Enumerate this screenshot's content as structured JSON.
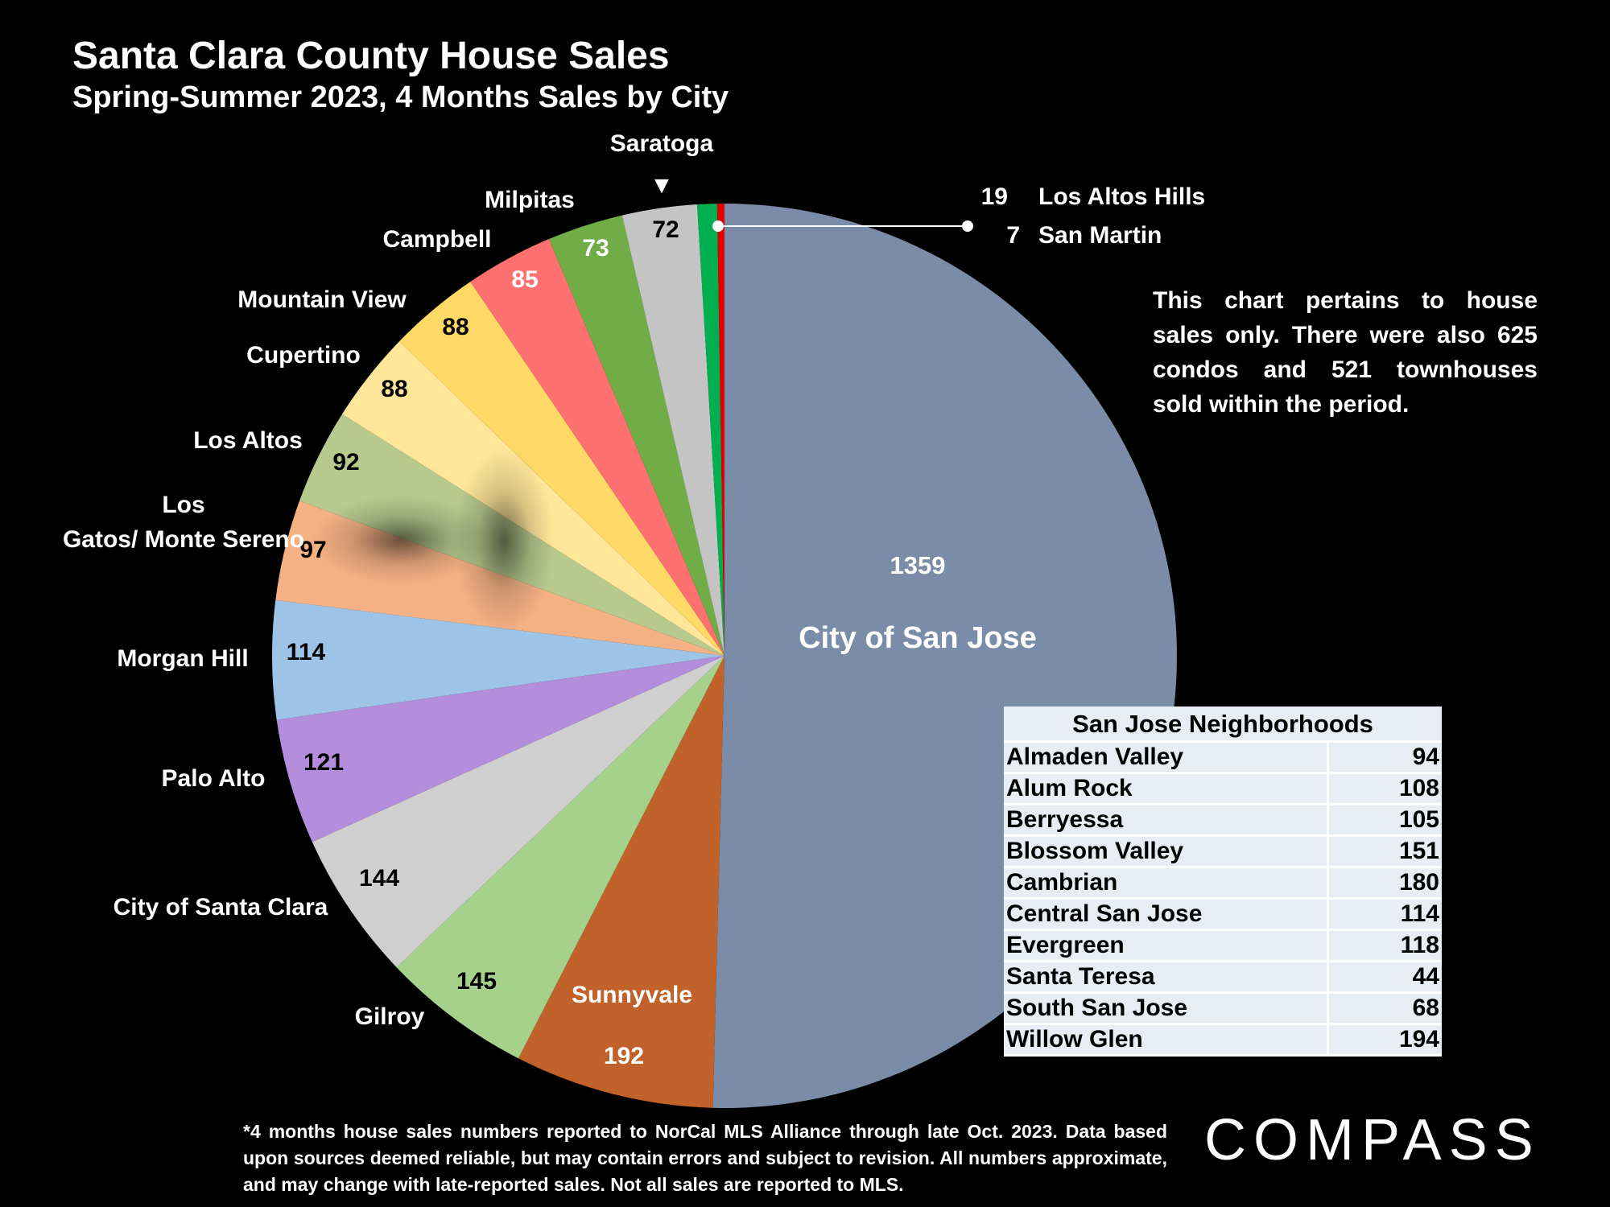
{
  "header": {
    "title": "Santa Clara County House Sales",
    "subtitle": "Spring-Summer 2023, 4 Months Sales by City"
  },
  "chart_data": {
    "type": "pie",
    "title": "Santa Clara County House Sales",
    "subtitle": "Spring-Summer 2023, 4 Months Sales by City",
    "slices": [
      {
        "label": "City of San Jose",
        "value": 1359,
        "color": "#7a8ca8"
      },
      {
        "label": "Sunnyvale",
        "value": 192,
        "color": "#c0622a"
      },
      {
        "label": "Gilroy",
        "value": 145,
        "color": "#a6d18b"
      },
      {
        "label": "City of Santa Clara",
        "value": 144,
        "color": "#cfcfcf"
      },
      {
        "label": "Palo Alto",
        "value": 121,
        "color": "#b48ddc"
      },
      {
        "label": "Morgan Hill",
        "value": 114,
        "color": "#9dc3e6"
      },
      {
        "label": "Los Gatos/ Monte Sereno",
        "value": 97,
        "color": "#f4b183"
      },
      {
        "label": "Los Altos",
        "value": 92,
        "color": "#b7c98d"
      },
      {
        "label": "Cupertino",
        "value": 88,
        "color": "#ffe699"
      },
      {
        "label": "Mountain View",
        "value": 88,
        "color": "#ffd966"
      },
      {
        "label": "Campbell",
        "value": 85,
        "color": "#ff7070"
      },
      {
        "label": "Milpitas",
        "value": 73,
        "color": "#70ad47"
      },
      {
        "label": "Saratoga",
        "value": 72,
        "color": "#c4c4c4"
      },
      {
        "label": "Los Altos Hills",
        "value": 19,
        "color": "#00b050"
      },
      {
        "label": "San Martin",
        "value": 7,
        "color": "#e00000"
      }
    ],
    "saratoga_marker": "▼"
  },
  "note": "This chart pertains to house sales only. There were also 625 condos and 521 townhouses sold within the period.",
  "neighborhoods": {
    "title": "San Jose Neighborhoods",
    "rows": [
      {
        "name": "Almaden Valley",
        "value": "94"
      },
      {
        "name": "Alum Rock",
        "value": "108"
      },
      {
        "name": "Berryessa",
        "value": "105"
      },
      {
        "name": "Blossom Valley",
        "value": "151"
      },
      {
        "name": "Cambrian",
        "value": "180"
      },
      {
        "name": "Central San Jose",
        "value": "114"
      },
      {
        "name": "Evergreen",
        "value": "118"
      },
      {
        "name": "Santa Teresa",
        "value": "44"
      },
      {
        "name": "South San Jose",
        "value": "68"
      },
      {
        "name": "Willow Glen",
        "value": "194"
      }
    ]
  },
  "footnote": "*4 months house sales numbers reported to NorCal MLS Alliance through late Oct. 2023. Data based upon sources deemed reliable, but may contain errors and subject to revision. All numbers approximate, and may change with late-reported sales. Not all sales are reported to MLS.",
  "logo": "COMPASS"
}
